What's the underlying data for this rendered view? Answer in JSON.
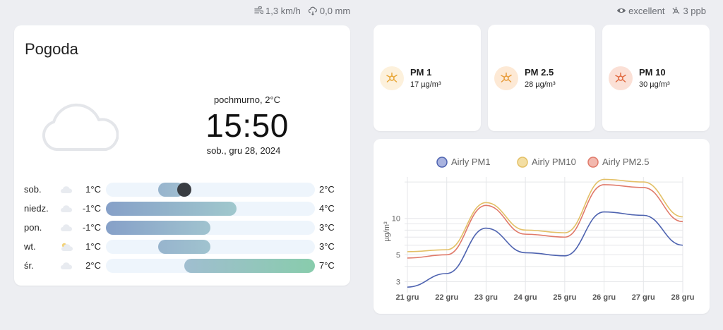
{
  "topbar": {
    "wind": "1,3 km/h",
    "rain": "0,0 mm",
    "air_quality": "excellent",
    "ozone": "3 ppb"
  },
  "weather": {
    "title": "Pogoda",
    "condition": "pochmurno, 2°C",
    "time": "15:50",
    "date": "sob., gru 28, 2024",
    "scale_min": -1,
    "scale_max": 7,
    "current_temp": 2,
    "forecast": [
      {
        "day": "sob.",
        "low": "1°C",
        "high": "2°C",
        "low_v": 1,
        "high_v": 2,
        "icon": "cloud-icon",
        "now": true
      },
      {
        "day": "niedz.",
        "low": "-1°C",
        "high": "4°C",
        "low_v": -1,
        "high_v": 4,
        "icon": "cloud-icon",
        "now": false
      },
      {
        "day": "pon.",
        "low": "-1°C",
        "high": "3°C",
        "low_v": -1,
        "high_v": 3,
        "icon": "cloud-icon",
        "now": false
      },
      {
        "day": "wt.",
        "low": "1°C",
        "high": "3°C",
        "low_v": 1,
        "high_v": 3,
        "icon": "partly-cloudy-icon",
        "now": false
      },
      {
        "day": "śr.",
        "low": "2°C",
        "high": "7°C",
        "low_v": 2,
        "high_v": 7,
        "icon": "cloud-icon",
        "now": false
      }
    ]
  },
  "pm_cards": [
    {
      "name": "PM 1",
      "value": "17 µg/m³",
      "color": "#e8a534",
      "bg": "#fdf1dc"
    },
    {
      "name": "PM 2.5",
      "value": "28 µg/m³",
      "color": "#e79a38",
      "bg": "#fde9d5"
    },
    {
      "name": "PM 10",
      "value": "30 µg/m³",
      "color": "#e0683f",
      "bg": "#fbe0d6"
    }
  ],
  "chart_data": {
    "type": "line",
    "x": [
      "21 gru",
      "22 gru",
      "23 gru",
      "24 gru",
      "25 gru",
      "26 gru",
      "27 gru",
      "28 gru"
    ],
    "ylabel": "µg/m³",
    "yscale": "log",
    "yticks": [
      3,
      5,
      10
    ],
    "ylim": [
      2.6,
      22
    ],
    "legend": "top-center",
    "series": [
      {
        "name": "Airly PM1",
        "color": "#4e63b0",
        "fill": "#a9b3df",
        "values": [
          2.7,
          3.5,
          8.3,
          5.2,
          4.9,
          11.3,
          10.6,
          6.0
        ]
      },
      {
        "name": "Airly PM10",
        "color": "#e3c066",
        "fill": "#f3dea3",
        "values": [
          5.3,
          5.5,
          13.5,
          8.0,
          7.6,
          21.0,
          20.0,
          10.3
        ]
      },
      {
        "name": "Airly PM2.5",
        "color": "#e07a6a",
        "fill": "#f2b8ae",
        "values": [
          4.7,
          5.0,
          12.8,
          7.4,
          7.0,
          19.0,
          18.0,
          9.4
        ]
      }
    ]
  }
}
